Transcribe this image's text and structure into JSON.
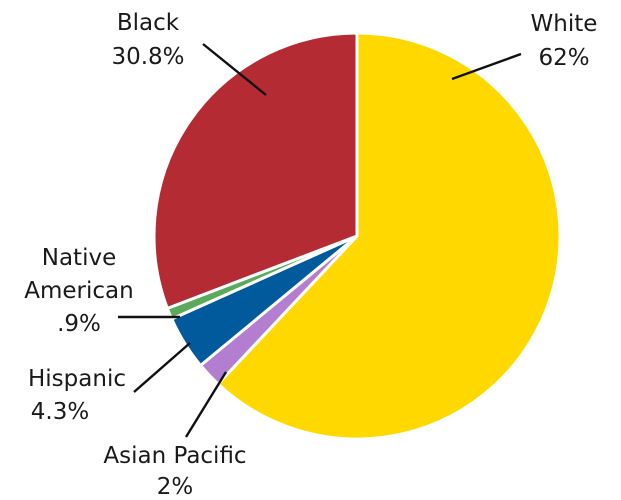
{
  "chart_data": {
    "type": "pie",
    "title": "",
    "slices": [
      {
        "label": "White",
        "value_label": "62%",
        "value": 62.0,
        "color": "#FFD800"
      },
      {
        "label": "Asian Pacific",
        "value_label": "2%",
        "value": 2.0,
        "color": "#B37ED0"
      },
      {
        "label": "Hispanic",
        "value_label": "4.3%",
        "value": 4.3,
        "color": "#005A9C"
      },
      {
        "label": "Native American",
        "value_label": ".9%",
        "value": 0.9,
        "color": "#5BAA5B"
      },
      {
        "label": "Black",
        "value_label": "30.8%",
        "value": 30.8,
        "color": "#B52B33"
      }
    ]
  },
  "labels": {
    "white": {
      "name": "White",
      "value": "62%"
    },
    "black": {
      "name": "Black",
      "value": "30.8%"
    },
    "native": {
      "line1": "Native",
      "line2": "American",
      "value": ".9%"
    },
    "hispanic": {
      "name": "Hispanic",
      "value": "4.3%"
    },
    "asian": {
      "name": "Asian Pacific",
      "value": "2%"
    }
  }
}
